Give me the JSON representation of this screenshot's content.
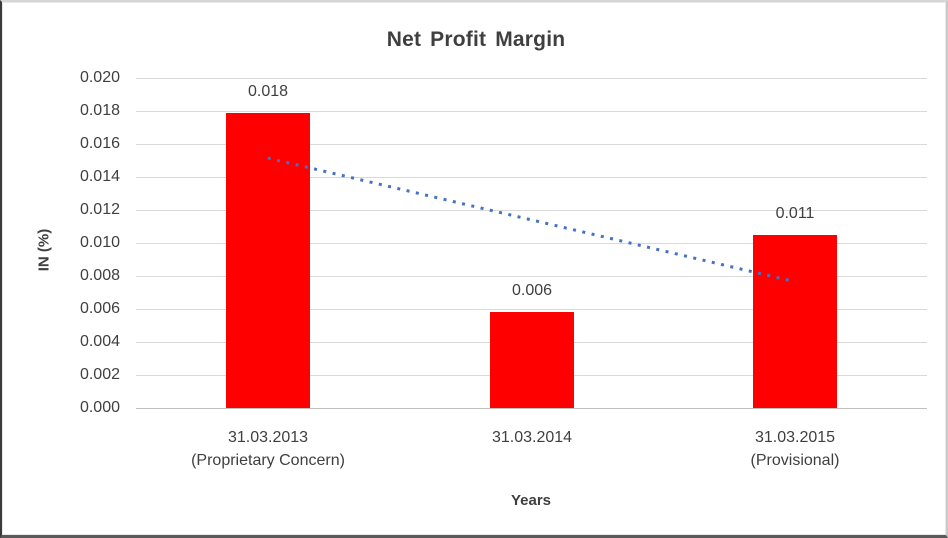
{
  "chart_data": {
    "type": "bar",
    "title": "Net Profit Margin",
    "xlabel": "Years",
    "ylabel": "IN (%)",
    "categories": [
      {
        "lines": [
          "31.03.2013",
          "(Proprietary Concern)"
        ]
      },
      {
        "lines": [
          "31.03.2014"
        ]
      },
      {
        "lines": [
          "31.03.2015",
          "(Provisional)"
        ]
      }
    ],
    "values": [
      0.0179,
      0.0058,
      0.0105
    ],
    "data_labels": [
      "0.018",
      "0.006",
      "0.011"
    ],
    "ylim": [
      0,
      0.02
    ],
    "ytick_step": 0.002,
    "ytick_labels": [
      "0.000",
      "0.002",
      "0.004",
      "0.006",
      "0.008",
      "0.010",
      "0.012",
      "0.014",
      "0.016",
      "0.018",
      "0.020"
    ],
    "grid": true,
    "legend": "none",
    "colors": {
      "bar": "#FF0000",
      "trendline": "#4472C4",
      "gridline": "#D9D9D9",
      "text": "#3F3F3F"
    },
    "trendline": {
      "style": "dotted",
      "start_category_index": 0,
      "end_category_index": 2,
      "start_value": 0.01515,
      "end_value": 0.00765
    }
  }
}
